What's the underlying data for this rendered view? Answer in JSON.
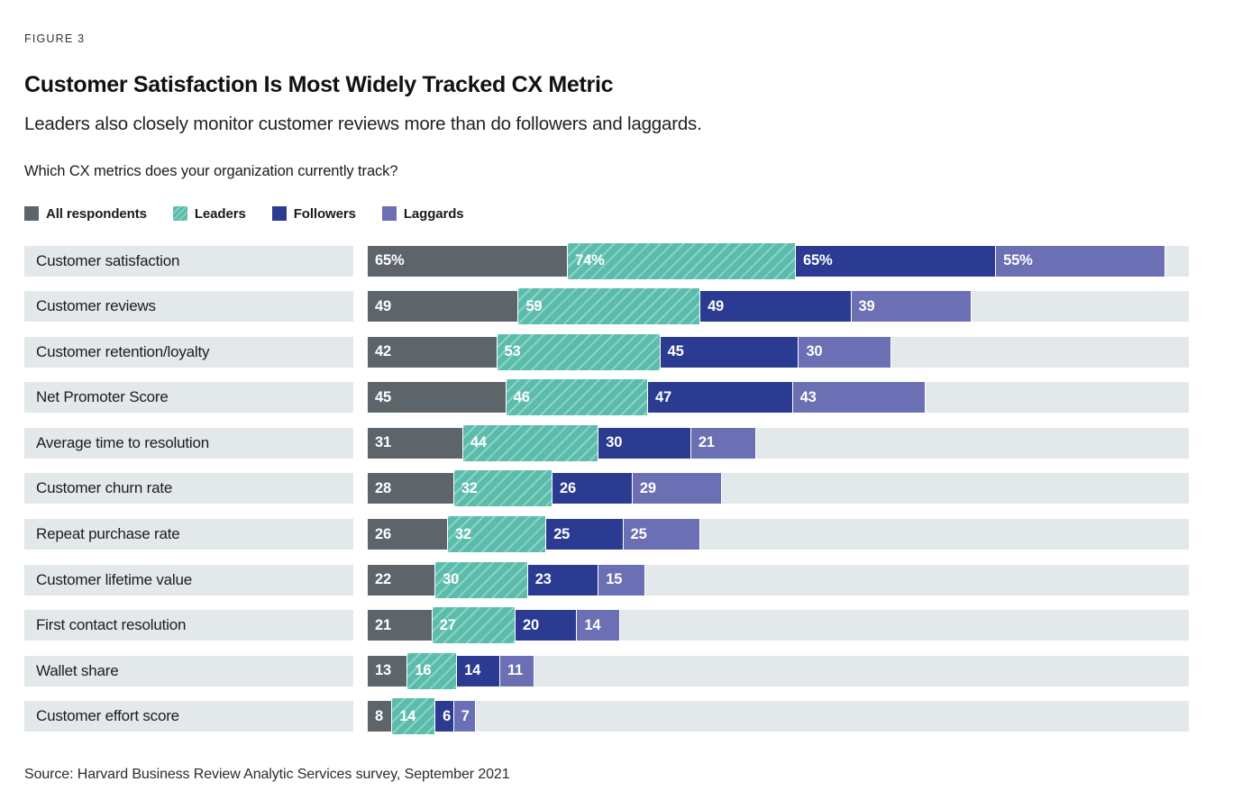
{
  "figure_label": "FIGURE 3",
  "title": "Customer Satisfaction Is Most Widely Tracked CX Metric",
  "subtitle": "Leaders also closely monitor customer reviews more than do followers and laggards.",
  "question": "Which CX metrics does your organization currently track?",
  "source": "Source: Harvard Business Review Analytic Services survey, September 2021",
  "colors": {
    "row_track": "#e3e8eb",
    "all_respondents": "#5d646a",
    "leaders": "#5abcab",
    "followers": "#2b3b92",
    "laggards": "#6b6fb3",
    "value_text": "#ffffff"
  },
  "legend": [
    {
      "label": "All respondents",
      "color": "#5d646a",
      "pattern": "solid"
    },
    {
      "label": "Leaders",
      "color": "#5abcab",
      "pattern": "diagonal-hatch"
    },
    {
      "label": "Followers",
      "color": "#2b3b92",
      "pattern": "solid"
    },
    {
      "label": "Laggards",
      "color": "#6b6fb3",
      "pattern": "solid"
    }
  ],
  "chart_data": {
    "type": "bar",
    "orientation": "horizontal",
    "stacked": true,
    "grid": false,
    "axis_labels_visible": false,
    "categories": [
      "Customer satisfaction",
      "Customer reviews",
      "Customer retention/loyalty",
      "Net Promoter Score",
      "Average time to resolution",
      "Customer churn rate",
      "Repeat purchase rate",
      "Customer lifetime value",
      "First contact resolution",
      "Wallet share",
      "Customer effort score"
    ],
    "series": [
      {
        "name": "All respondents",
        "color": "#5d646a",
        "hatch": false,
        "values": [
          65,
          49,
          42,
          45,
          31,
          28,
          26,
          22,
          21,
          13,
          8
        ]
      },
      {
        "name": "Leaders",
        "color": "#5abcab",
        "hatch": true,
        "values": [
          74,
          59,
          53,
          46,
          44,
          32,
          32,
          30,
          27,
          16,
          14
        ]
      },
      {
        "name": "Followers",
        "color": "#2b3b92",
        "hatch": false,
        "values": [
          65,
          49,
          45,
          47,
          30,
          26,
          25,
          23,
          20,
          14,
          6
        ]
      },
      {
        "name": "Laggards",
        "color": "#6b6fb3",
        "hatch": false,
        "values": [
          55,
          39,
          30,
          43,
          21,
          29,
          25,
          15,
          14,
          11,
          7
        ]
      }
    ],
    "value_labels": [
      [
        "65%",
        "74%",
        "65%",
        "55%"
      ],
      [
        "49",
        "59",
        "49",
        "39"
      ],
      [
        "42",
        "53",
        "45",
        "30"
      ],
      [
        "45",
        "46",
        "47",
        "43"
      ],
      [
        "31",
        "44",
        "30",
        "21"
      ],
      [
        "28",
        "32",
        "26",
        "29"
      ],
      [
        "26",
        "32",
        "25",
        "25"
      ],
      [
        "22",
        "30",
        "23",
        "15"
      ],
      [
        "21",
        "27",
        "20",
        "14"
      ],
      [
        "13",
        "16",
        "14",
        "11"
      ],
      [
        "8",
        "14",
        "6",
        "7"
      ]
    ]
  }
}
